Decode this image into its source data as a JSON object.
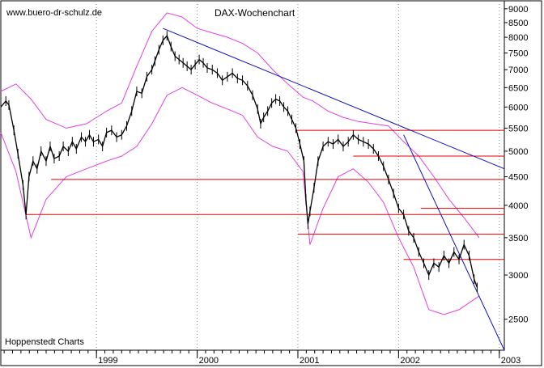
{
  "website": "www.buero-dr-schulz.de",
  "chart_data": {
    "type": "candlestick",
    "title": "DAX-Wochenchart",
    "source": "Hoppenstedt Charts",
    "y_scale": "log",
    "y_ticks": [
      2500,
      3000,
      3500,
      4000,
      4500,
      5000,
      5500,
      6000,
      6500,
      7000,
      7500,
      8000,
      8500,
      9000
    ],
    "y_tick_labels": [
      "2500",
      "3000",
      "3500",
      "4000",
      "4500",
      "5000",
      "5500",
      "6000",
      "6500",
      "7000",
      "7500",
      "8000",
      "8500",
      "9000"
    ],
    "ylim": [
      2200,
      9300
    ],
    "x_range": [
      1998.05,
      2003.05
    ],
    "x_ticks": [
      {
        "x": 1999.0,
        "label": "1999"
      },
      {
        "x": 2000.0,
        "label": "2000"
      },
      {
        "x": 2001.0,
        "label": "2001"
      },
      {
        "x": 2002.0,
        "label": "2002"
      },
      {
        "x": 2003.0,
        "label": "2003"
      }
    ],
    "grid": "vertical dotted at year boundaries",
    "price_series": {
      "color": "#000000",
      "points": [
        [
          1998.05,
          6000
        ],
        [
          1998.1,
          6150
        ],
        [
          1998.13,
          6050
        ],
        [
          1998.18,
          5450
        ],
        [
          1998.22,
          4950
        ],
        [
          1998.27,
          4350
        ],
        [
          1998.3,
          3850
        ],
        [
          1998.33,
          4500
        ],
        [
          1998.37,
          4800
        ],
        [
          1998.41,
          4650
        ],
        [
          1998.45,
          5000
        ],
        [
          1998.5,
          4800
        ],
        [
          1998.54,
          5100
        ],
        [
          1998.58,
          4850
        ],
        [
          1998.63,
          4900
        ],
        [
          1998.67,
          5100
        ],
        [
          1998.72,
          5000
        ],
        [
          1998.76,
          5200
        ],
        [
          1998.8,
          5050
        ],
        [
          1998.85,
          5300
        ],
        [
          1998.89,
          5200
        ],
        [
          1998.93,
          5350
        ],
        [
          1998.97,
          5200
        ],
        [
          1999.02,
          5250
        ],
        [
          1999.06,
          5100
        ],
        [
          1999.1,
          5400
        ],
        [
          1999.15,
          5450
        ],
        [
          1999.2,
          5300
        ],
        [
          1999.25,
          5350
        ],
        [
          1999.3,
          5550
        ],
        [
          1999.35,
          5900
        ],
        [
          1999.4,
          6400
        ],
        [
          1999.45,
          6350
        ],
        [
          1999.5,
          6800
        ],
        [
          1999.55,
          7000
        ],
        [
          1999.58,
          7250
        ],
        [
          1999.62,
          7600
        ],
        [
          1999.66,
          7900
        ],
        [
          1999.7,
          8050
        ],
        [
          1999.74,
          7700
        ],
        [
          1999.78,
          7400
        ],
        [
          1999.82,
          7300
        ],
        [
          1999.86,
          7200
        ],
        [
          1999.9,
          7100
        ],
        [
          1999.94,
          7000
        ],
        [
          1999.98,
          7150
        ],
        [
          2000.02,
          7300
        ],
        [
          2000.06,
          7200
        ],
        [
          2000.1,
          7050
        ],
        [
          2000.15,
          7000
        ],
        [
          2000.2,
          6900
        ],
        [
          2000.25,
          6700
        ],
        [
          2000.3,
          6800
        ],
        [
          2000.35,
          6900
        ],
        [
          2000.4,
          6750
        ],
        [
          2000.45,
          6700
        ],
        [
          2000.5,
          6550
        ],
        [
          2000.55,
          6300
        ],
        [
          2000.6,
          5950
        ],
        [
          2000.63,
          5600
        ],
        [
          2000.66,
          5750
        ],
        [
          2000.7,
          5900
        ],
        [
          2000.74,
          6100
        ],
        [
          2000.78,
          6200
        ],
        [
          2000.82,
          6150
        ],
        [
          2000.86,
          6000
        ],
        [
          2000.9,
          5900
        ],
        [
          2000.94,
          5700
        ],
        [
          2000.98,
          5500
        ],
        [
          2001.02,
          5150
        ],
        [
          2001.06,
          4800
        ],
        [
          2001.08,
          4100
        ],
        [
          2001.1,
          3700
        ],
        [
          2001.12,
          3900
        ],
        [
          2001.16,
          4300
        ],
        [
          2001.2,
          4800
        ],
        [
          2001.25,
          5100
        ],
        [
          2001.3,
          5200
        ],
        [
          2001.35,
          5150
        ],
        [
          2001.4,
          5250
        ],
        [
          2001.45,
          5100
        ],
        [
          2001.5,
          5200
        ],
        [
          2001.55,
          5350
        ],
        [
          2001.6,
          5250
        ],
        [
          2001.65,
          5200
        ],
        [
          2001.7,
          5150
        ],
        [
          2001.75,
          5050
        ],
        [
          2001.8,
          4900
        ],
        [
          2001.85,
          4700
        ],
        [
          2001.9,
          4450
        ],
        [
          2001.95,
          4200
        ],
        [
          2002.0,
          3950
        ],
        [
          2002.05,
          3850
        ],
        [
          2002.1,
          3600
        ],
        [
          2002.15,
          3500
        ],
        [
          2002.2,
          3300
        ],
        [
          2002.25,
          3150
        ],
        [
          2002.3,
          3000
        ],
        [
          2002.35,
          3150
        ],
        [
          2002.4,
          3100
        ],
        [
          2002.45,
          3250
        ],
        [
          2002.5,
          3150
        ],
        [
          2002.55,
          3300
        ],
        [
          2002.6,
          3200
        ],
        [
          2002.65,
          3400
        ],
        [
          2002.7,
          3250
        ],
        [
          2002.75,
          2950
        ],
        [
          2002.78,
          2850
        ]
      ]
    },
    "bollinger_bands": {
      "color": "#e040e0",
      "upper": [
        [
          1998.05,
          6400
        ],
        [
          1998.2,
          6600
        ],
        [
          1998.35,
          6200
        ],
        [
          1998.5,
          5700
        ],
        [
          1998.7,
          5500
        ],
        [
          1998.9,
          5600
        ],
        [
          1999.1,
          5900
        ],
        [
          1999.25,
          6100
        ],
        [
          1999.4,
          7100
        ],
        [
          1999.55,
          8200
        ],
        [
          1999.7,
          8850
        ],
        [
          1999.85,
          8700
        ],
        [
          2000.0,
          8300
        ],
        [
          2000.15,
          8150
        ],
        [
          2000.3,
          8000
        ],
        [
          2000.45,
          7800
        ],
        [
          2000.6,
          7500
        ],
        [
          2000.75,
          7000
        ],
        [
          2000.9,
          6600
        ],
        [
          2001.05,
          6250
        ],
        [
          2001.15,
          6150
        ],
        [
          2001.3,
          5900
        ],
        [
          2001.45,
          5750
        ],
        [
          2001.6,
          5650
        ],
        [
          2001.75,
          5600
        ],
        [
          2001.9,
          5550
        ],
        [
          2002.05,
          5200
        ],
        [
          2002.2,
          4900
        ],
        [
          2002.35,
          4500
        ],
        [
          2002.5,
          4100
        ],
        [
          2002.65,
          3800
        ],
        [
          2002.8,
          3500
        ]
      ],
      "lower": [
        [
          1998.05,
          5400
        ],
        [
          1998.2,
          4600
        ],
        [
          1998.35,
          3500
        ],
        [
          1998.5,
          4100
        ],
        [
          1998.7,
          4500
        ],
        [
          1998.9,
          4650
        ],
        [
          1999.1,
          4800
        ],
        [
          1999.25,
          4900
        ],
        [
          1999.4,
          5100
        ],
        [
          1999.55,
          5600
        ],
        [
          1999.7,
          6300
        ],
        [
          1999.85,
          6500
        ],
        [
          2000.0,
          6300
        ],
        [
          2000.15,
          6100
        ],
        [
          2000.3,
          5950
        ],
        [
          2000.45,
          5800
        ],
        [
          2000.6,
          5300
        ],
        [
          2000.75,
          5100
        ],
        [
          2000.9,
          5000
        ],
        [
          2001.05,
          4600
        ],
        [
          2001.12,
          3400
        ],
        [
          2001.25,
          3950
        ],
        [
          2001.4,
          4500
        ],
        [
          2001.55,
          4650
        ],
        [
          2001.7,
          4400
        ],
        [
          2001.85,
          4050
        ],
        [
          2002.0,
          3500
        ],
        [
          2002.15,
          3100
        ],
        [
          2002.3,
          2600
        ],
        [
          2002.45,
          2550
        ],
        [
          2002.6,
          2600
        ],
        [
          2002.8,
          2750
        ]
      ]
    },
    "horizontal_lines": {
      "color": "#dd0000",
      "lines": [
        {
          "y": 5450,
          "x_start": 2000.98,
          "x_end": 2003.05
        },
        {
          "y": 4900,
          "x_start": 2001.55,
          "x_end": 2003.05
        },
        {
          "y": 4450,
          "x_start": 1998.55,
          "x_end": 2003.05
        },
        {
          "y": 3950,
          "x_start": 2002.22,
          "x_end": 2003.05
        },
        {
          "y": 3850,
          "x_start": 1998.3,
          "x_end": 2003.05
        },
        {
          "y": 3550,
          "x_start": 2001.0,
          "x_end": 2003.05
        },
        {
          "y": 3200,
          "x_start": 2002.05,
          "x_end": 2003.05
        }
      ]
    },
    "trend_lines": {
      "color": "#1010c0",
      "lines": [
        {
          "from": [
            1999.66,
            8300
          ],
          "to": [
            2003.05,
            4650
          ]
        },
        {
          "from": [
            2002.05,
            5350
          ],
          "to": [
            2003.05,
            2200
          ]
        }
      ]
    }
  }
}
